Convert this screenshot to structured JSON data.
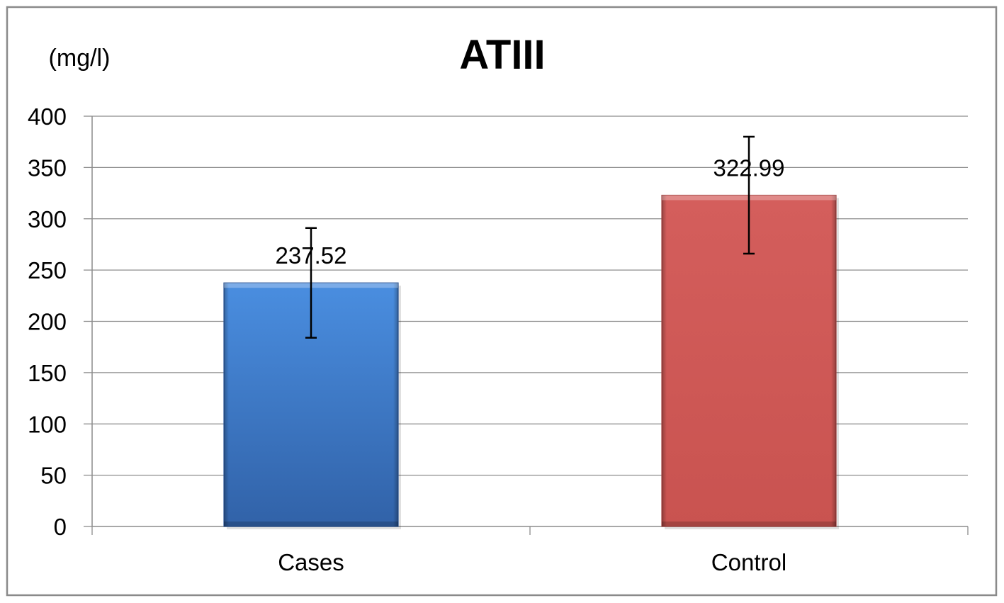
{
  "chart_data": {
    "type": "bar",
    "title": "ATIII",
    "ylabel": "(mg/l)",
    "xlabel": "",
    "categories": [
      "Cases",
      "Control"
    ],
    "values": [
      237.52,
      322.99
    ],
    "value_labels": [
      "237.52",
      "322.99"
    ],
    "error_bars": [
      {
        "low": 184,
        "high": 291
      },
      {
        "low": 266,
        "high": 380
      }
    ],
    "colors": [
      "#3c7dd0",
      "#d05a58"
    ],
    "ylim": [
      0,
      400
    ],
    "yticks": [
      0,
      50,
      100,
      150,
      200,
      250,
      300,
      350,
      400
    ],
    "ytick_labels": [
      "0",
      "50",
      "100",
      "150",
      "200",
      "250",
      "300",
      "350",
      "400"
    ],
    "grid": true,
    "legend": "none"
  }
}
